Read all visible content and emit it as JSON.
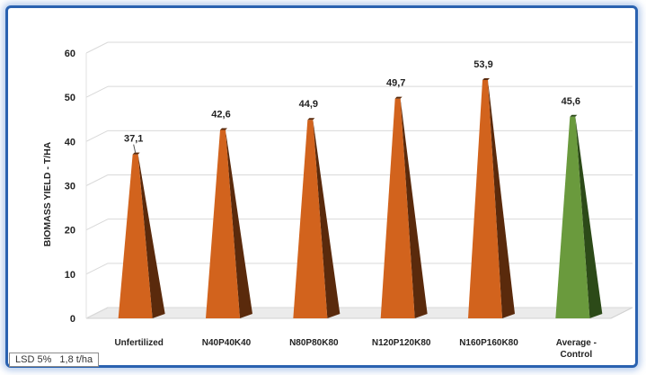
{
  "chart_data": {
    "type": "bar",
    "style": "3d-pyramid",
    "ylabel": "BIOMASS YIELD - T/HA",
    "xlabel": "",
    "ylim": [
      0,
      60
    ],
    "yticks": [
      0,
      10,
      20,
      30,
      40,
      50,
      60
    ],
    "grid": true,
    "categories": [
      [
        "Unfertilized"
      ],
      [
        "N40P40K40"
      ],
      [
        "N80P80K80"
      ],
      [
        "N120P120K80"
      ],
      [
        "N160P160K80"
      ],
      [
        "Average -",
        "Control"
      ]
    ],
    "values": [
      37.1,
      42.6,
      44.9,
      49.7,
      53.9,
      45.6
    ],
    "data_labels": [
      "37,1",
      "42,6",
      "44,9",
      "49,7",
      "53,9",
      "45,6"
    ],
    "bar_colors": [
      "#d2631d",
      "#d2631d",
      "#d2631d",
      "#d2631d",
      "#d2631d",
      "#6a9a3d"
    ],
    "bar_side_colors": [
      "#5a2a0c",
      "#5a2a0c",
      "#5a2a0c",
      "#5a2a0c",
      "#5a2a0c",
      "#2c4a18"
    ]
  },
  "legend_box": {
    "label": "LSD 5%",
    "value": "1,8 t/ha"
  }
}
